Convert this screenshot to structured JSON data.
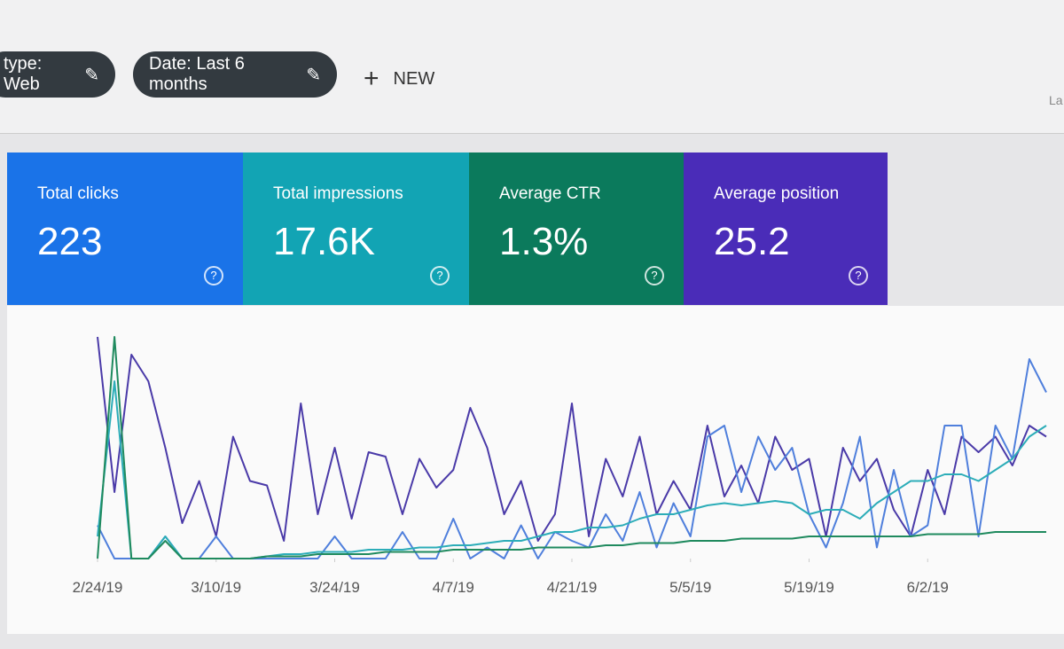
{
  "toolbar": {
    "chips": [
      "type: Web",
      "Date: Last 6 months"
    ],
    "new_button": "NEW",
    "partial_text": "La"
  },
  "metrics": [
    {
      "label": "Total clicks",
      "value": "223",
      "color": "#1a73e8"
    },
    {
      "label": "Total impressions",
      "value": "17.6K",
      "color": "#12a4b4"
    },
    {
      "label": "Average CTR",
      "value": "1.3%",
      "color": "#0b7a5c"
    },
    {
      "label": "Average position",
      "value": "25.2",
      "color": "#4a2cb8"
    }
  ],
  "chart_data": {
    "type": "line",
    "xlim": [
      0,
      56
    ],
    "ylim": [
      0,
      100
    ],
    "xticks": [
      {
        "value": 0,
        "label": "2/24/19"
      },
      {
        "value": 7,
        "label": "3/10/19"
      },
      {
        "value": 14,
        "label": "3/24/19"
      },
      {
        "value": 21,
        "label": "4/7/19"
      },
      {
        "value": 28,
        "label": "4/21/19"
      },
      {
        "value": 35,
        "label": "5/5/19"
      },
      {
        "value": 42,
        "label": "5/19/19"
      },
      {
        "value": 49,
        "label": "6/2/19"
      }
    ],
    "series": [
      {
        "color": "#4a3aa8",
        "values": [
          100,
          30,
          92,
          80,
          50,
          16,
          35,
          10,
          55,
          35,
          33,
          8,
          70,
          20,
          50,
          18,
          48,
          46,
          20,
          45,
          32,
          40,
          68,
          50,
          20,
          35,
          8,
          20,
          70,
          10,
          45,
          28,
          55,
          20,
          35,
          22,
          60,
          28,
          42,
          25,
          55,
          40,
          45,
          10,
          50,
          35,
          45,
          22,
          10,
          40,
          20,
          55,
          48,
          55,
          42,
          60,
          55
        ]
      },
      {
        "color": "#4f7fdc",
        "values": [
          15,
          0,
          0,
          0,
          10,
          0,
          0,
          10,
          0,
          0,
          0,
          0,
          0,
          0,
          10,
          0,
          0,
          0,
          12,
          0,
          0,
          18,
          0,
          5,
          0,
          15,
          0,
          12,
          8,
          5,
          20,
          8,
          30,
          5,
          25,
          10,
          55,
          60,
          30,
          55,
          40,
          50,
          20,
          5,
          25,
          55,
          5,
          40,
          10,
          15,
          60,
          60,
          10,
          60,
          45,
          90,
          75
        ]
      },
      {
        "color": "#2cadb8",
        "values": [
          10,
          80,
          0,
          0,
          10,
          0,
          0,
          0,
          0,
          0,
          1,
          2,
          2,
          3,
          3,
          3,
          4,
          4,
          4,
          5,
          5,
          6,
          6,
          7,
          8,
          8,
          10,
          12,
          12,
          14,
          14,
          15,
          18,
          20,
          20,
          22,
          24,
          25,
          24,
          25,
          26,
          25,
          20,
          22,
          22,
          18,
          25,
          30,
          35,
          35,
          38,
          38,
          35,
          40,
          45,
          55,
          60
        ]
      },
      {
        "color": "#1f8a5e",
        "values": [
          0,
          100,
          0,
          0,
          8,
          0,
          0,
          0,
          0,
          0,
          1,
          1,
          1,
          2,
          2,
          2,
          2,
          3,
          3,
          3,
          3,
          4,
          4,
          4,
          4,
          4,
          5,
          5,
          5,
          5,
          6,
          6,
          7,
          7,
          7,
          8,
          8,
          8,
          9,
          9,
          9,
          9,
          10,
          10,
          10,
          10,
          10,
          10,
          10,
          11,
          11,
          11,
          11,
          12,
          12,
          12,
          12
        ]
      }
    ]
  }
}
